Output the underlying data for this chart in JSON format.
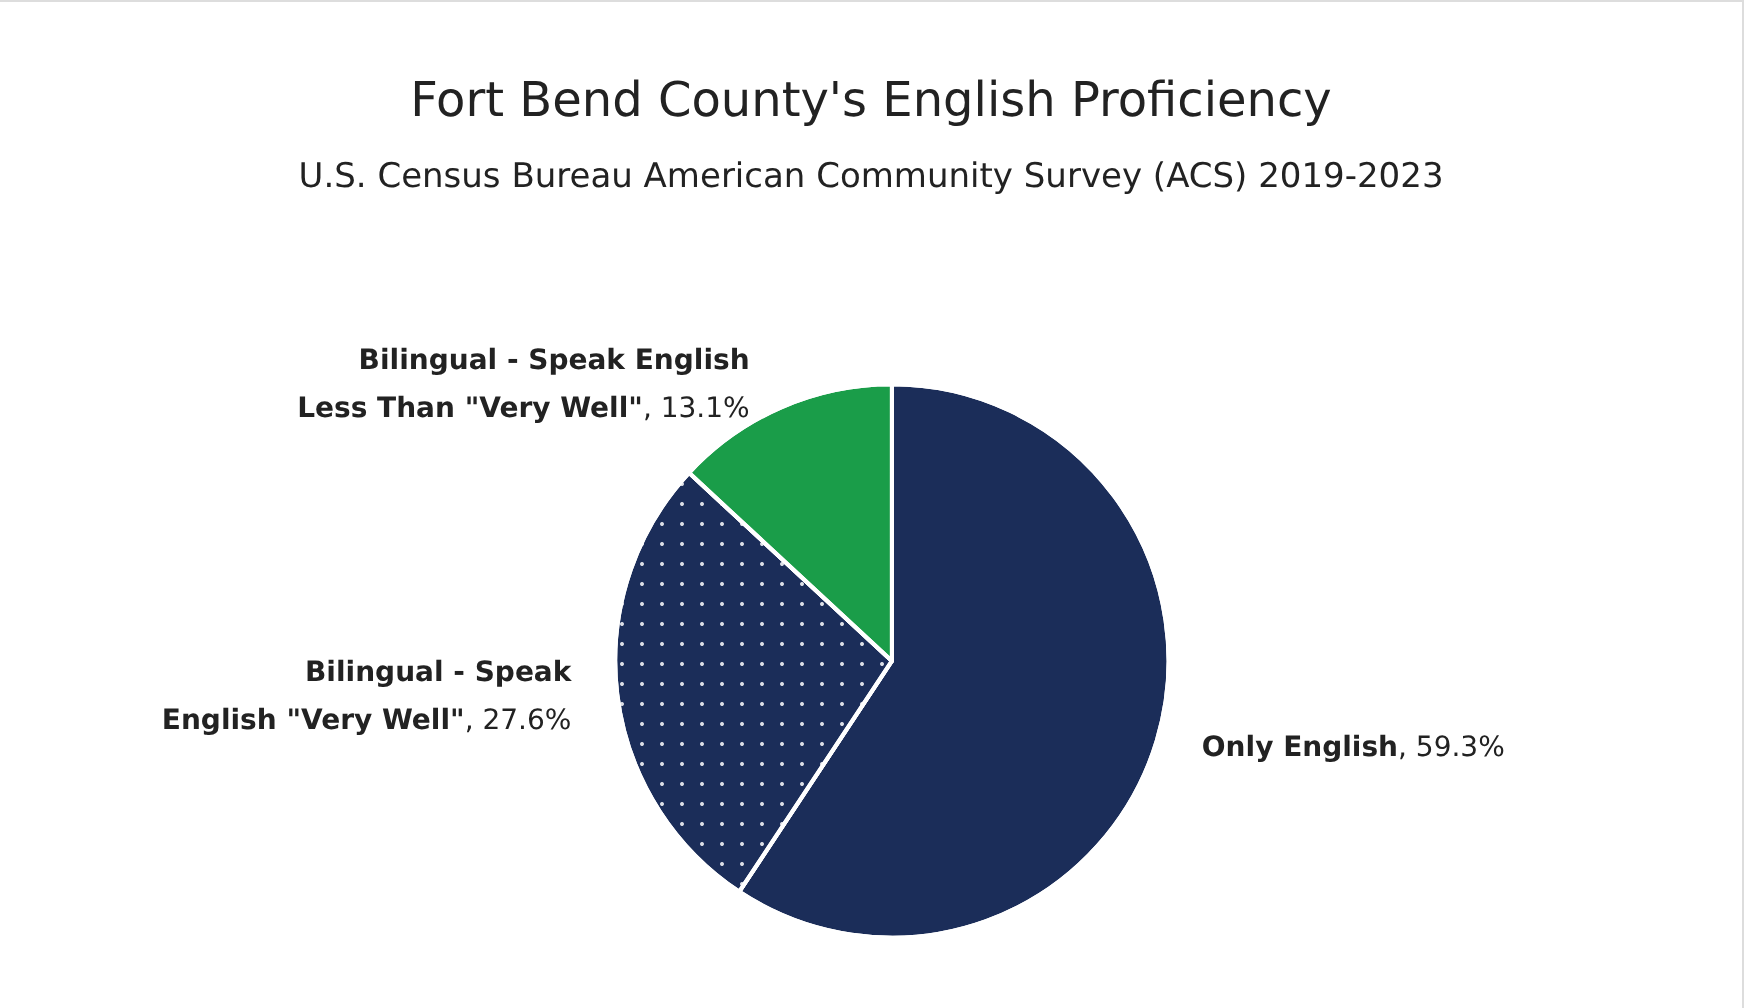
{
  "chart_data": {
    "type": "pie",
    "title": "Fort Bend County's English Proficiency",
    "subtitle": "U.S. Census Bureau American Community Survey (ACS) 2019-2023",
    "categories": [
      "Only English",
      "Bilingual - Speak English \"Very Well\"",
      "Bilingual - Speak English Less Than \"Very Well\""
    ],
    "values": [
      59.3,
      27.6,
      13.1
    ],
    "value_labels": [
      ", 59.3%",
      ", 27.6%",
      ", 13.1%"
    ],
    "colors": [
      "#1b2d59",
      "#1b2d59",
      "#1a9d49"
    ],
    "legend": false
  }
}
